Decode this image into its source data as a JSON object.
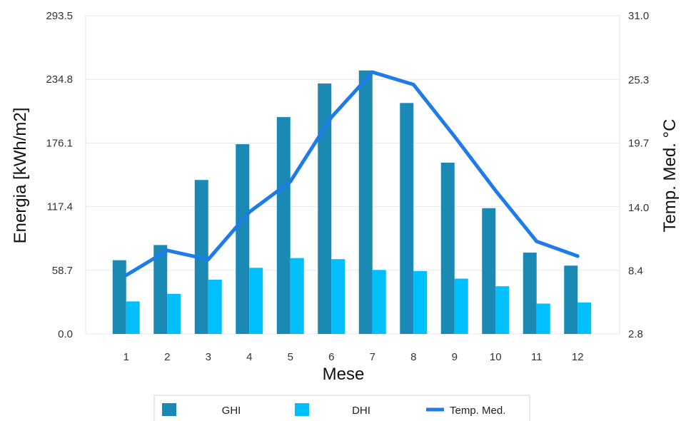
{
  "chart_data": {
    "type": "bar",
    "categories": [
      "1",
      "2",
      "3",
      "4",
      "5",
      "6",
      "7",
      "8",
      "9",
      "10",
      "11",
      "12"
    ],
    "series": [
      {
        "name": "GHI",
        "kind": "bar",
        "axis": "left",
        "color": "#1a8ab5",
        "values": [
          68,
          82,
          142,
          175,
          200,
          231,
          243,
          213,
          158,
          116,
          75,
          63
        ]
      },
      {
        "name": "DHI",
        "kind": "bar",
        "axis": "left",
        "color": "#00bfff",
        "values": [
          30,
          37,
          50,
          61,
          70,
          69,
          59,
          58,
          51,
          44,
          28,
          29
        ]
      },
      {
        "name": "Temp. Med.",
        "kind": "line",
        "axis": "right",
        "color": "#1e7be8",
        "values": [
          8.0,
          10.2,
          9.4,
          13.6,
          16.3,
          22.0,
          26.0,
          24.9,
          20.3,
          15.5,
          11.0,
          9.7
        ]
      }
    ],
    "xlabel": "Mese",
    "ylabel": "Energia [kWh/m2]",
    "y2label": "Temp. Med. °C",
    "ylim": [
      0,
      293.5
    ],
    "y2lim": [
      2.8,
      31.0
    ],
    "yticks": [
      "0.0",
      "58.7",
      "117.4",
      "176.1",
      "234.8",
      "293.5"
    ],
    "y2ticks": [
      "2.8",
      "8.4",
      "14.0",
      "19.7",
      "25.3",
      "31.0"
    ],
    "grid": true,
    "legend_position": "bottom"
  }
}
